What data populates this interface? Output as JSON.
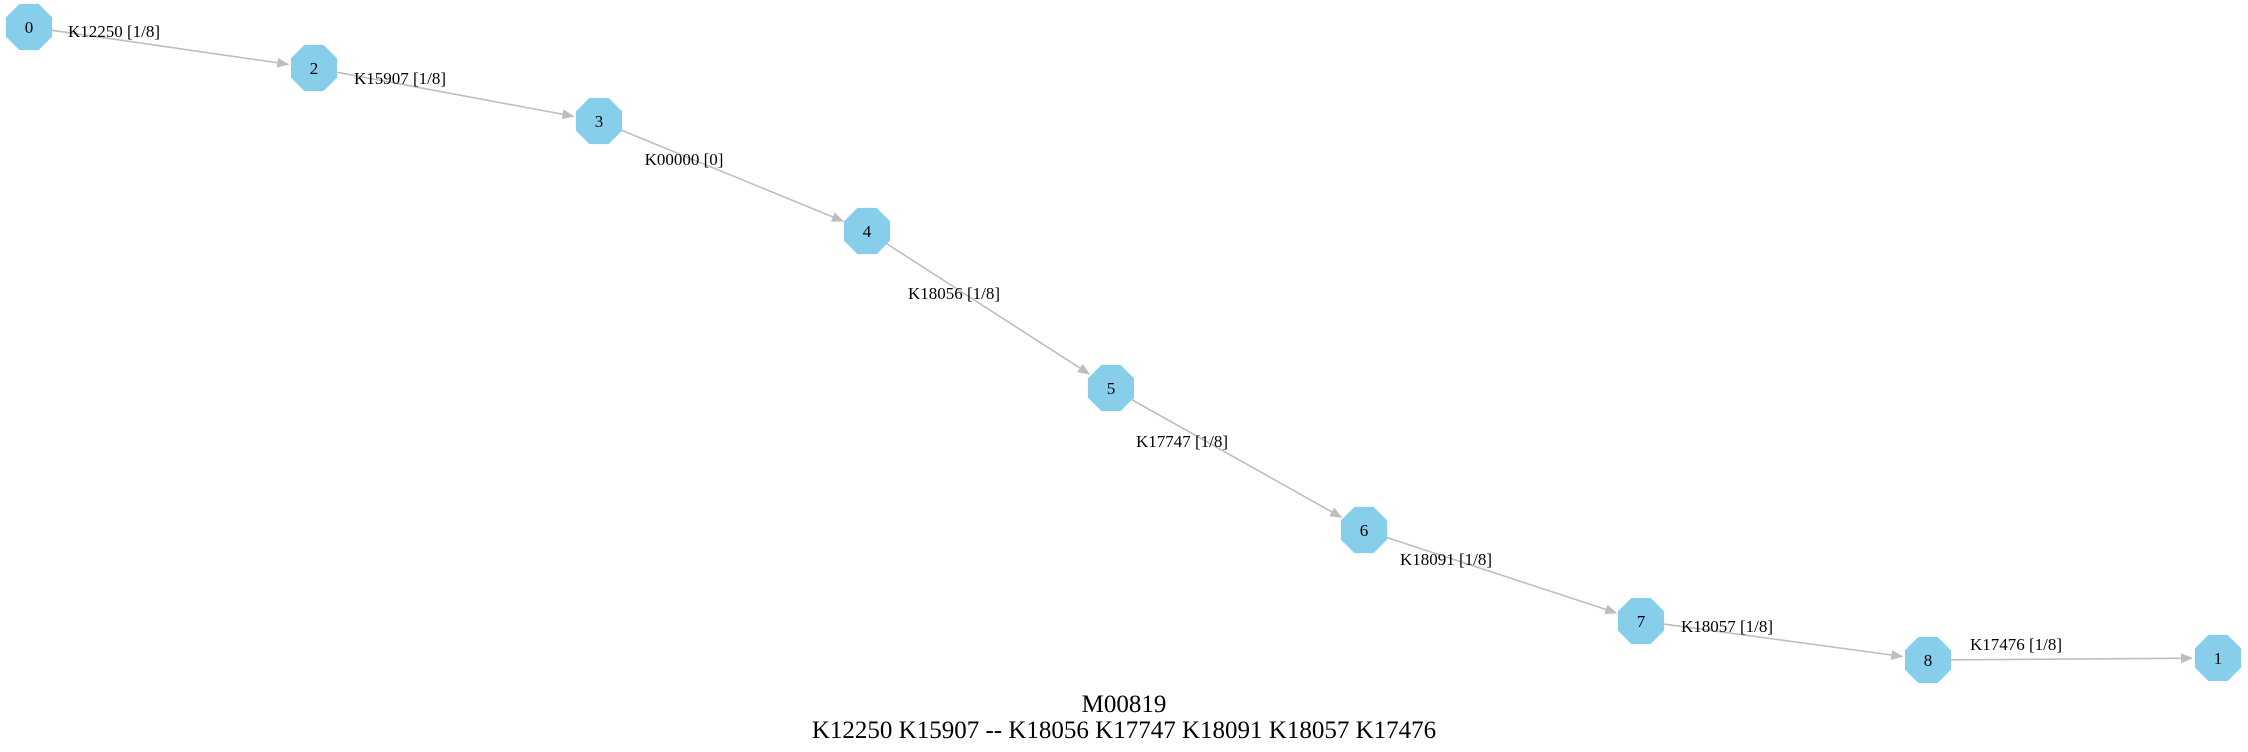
{
  "colors": {
    "node_fill": "#87ceeb",
    "edge": "#bebebe",
    "text": "#000000",
    "background": "#ffffff"
  },
  "node_shape": "octagon",
  "nodes": [
    {
      "id": "n0",
      "label": "0"
    },
    {
      "id": "n2",
      "label": "2"
    },
    {
      "id": "n3",
      "label": "3"
    },
    {
      "id": "n4",
      "label": "4"
    },
    {
      "id": "n5",
      "label": "5"
    },
    {
      "id": "n6",
      "label": "6"
    },
    {
      "id": "n7",
      "label": "7"
    },
    {
      "id": "n8",
      "label": "8"
    },
    {
      "id": "n1",
      "label": "1"
    }
  ],
  "edges": [
    {
      "from": "n0",
      "to": "n2",
      "label": "K12250 [1/8]"
    },
    {
      "from": "n2",
      "to": "n3",
      "label": "K15907 [1/8]"
    },
    {
      "from": "n3",
      "to": "n4",
      "label": "K00000 [0]"
    },
    {
      "from": "n4",
      "to": "n5",
      "label": "K18056 [1/8]"
    },
    {
      "from": "n5",
      "to": "n6",
      "label": "K17747 [1/8]"
    },
    {
      "from": "n6",
      "to": "n7",
      "label": "K18091 [1/8]"
    },
    {
      "from": "n7",
      "to": "n8",
      "label": "K18057 [1/8]"
    },
    {
      "from": "n8",
      "to": "n1",
      "label": "K17476 [1/8]"
    }
  ],
  "caption": {
    "title": "M00819",
    "subtitle": "K12250 K15907 -- K18056 K17747 K18091 K18057 K17476"
  }
}
